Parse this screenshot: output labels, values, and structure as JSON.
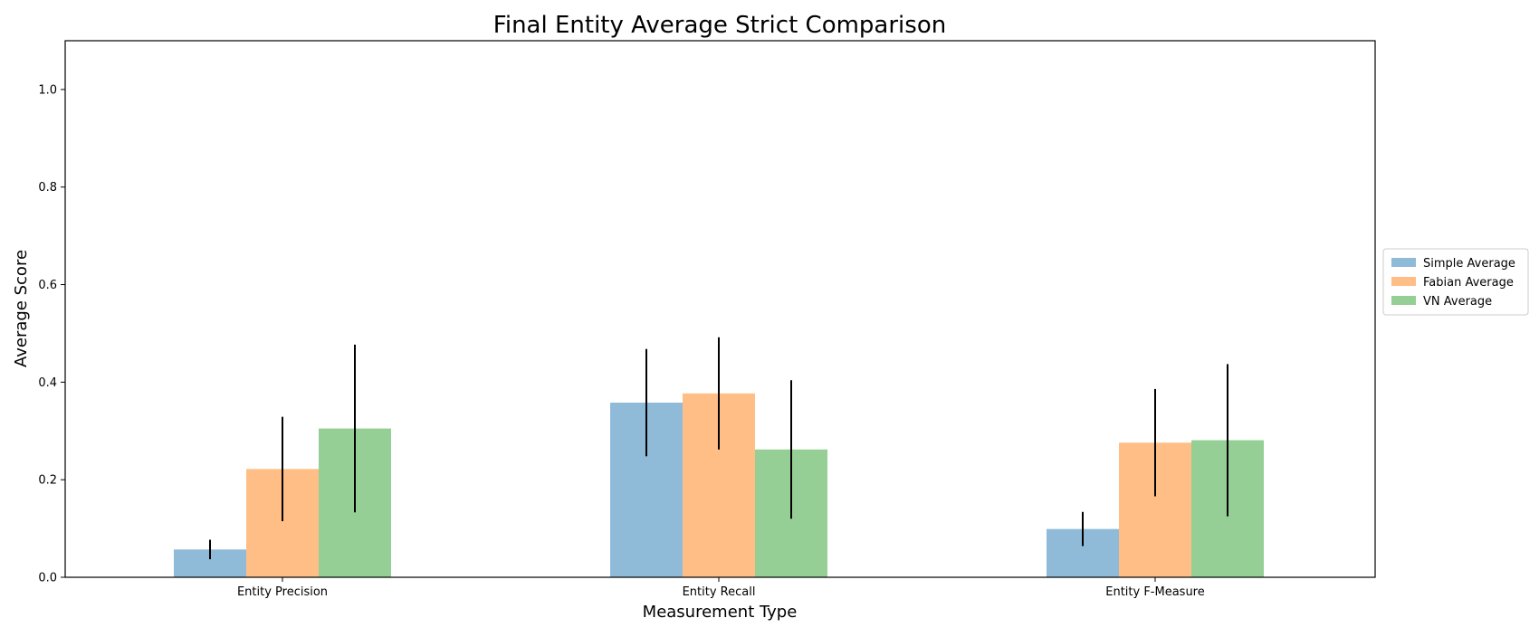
{
  "chart_data": {
    "type": "bar",
    "title": "Final Entity Average Strict Comparison",
    "xlabel": "Measurement Type",
    "ylabel": "Average Score",
    "categories": [
      "Entity Precision",
      "Entity Recall",
      "Entity F-Measure"
    ],
    "series": [
      {
        "name": "Simple Average",
        "color": "#8fbbd9",
        "values": [
          0.057,
          0.358,
          0.099
        ],
        "errors": [
          0.02,
          0.11,
          0.035
        ]
      },
      {
        "name": "Fabian Average",
        "color": "#ffbe86",
        "values": [
          0.222,
          0.377,
          0.276
        ],
        "errors": [
          0.107,
          0.115,
          0.11
        ]
      },
      {
        "name": "VN Average",
        "color": "#95cf95",
        "values": [
          0.305,
          0.262,
          0.281
        ],
        "errors": [
          0.172,
          0.142,
          0.156
        ]
      }
    ],
    "ylim": [
      0,
      1.1
    ],
    "yticks": [
      0.0,
      0.2,
      0.4,
      0.6,
      0.8,
      1.0
    ],
    "ytick_labels": [
      "0.0",
      "0.2",
      "0.4",
      "0.6",
      "0.8",
      "1.0"
    ],
    "grid": false,
    "legend_position": "right, outside plot",
    "error_bar_color": "#000000"
  }
}
